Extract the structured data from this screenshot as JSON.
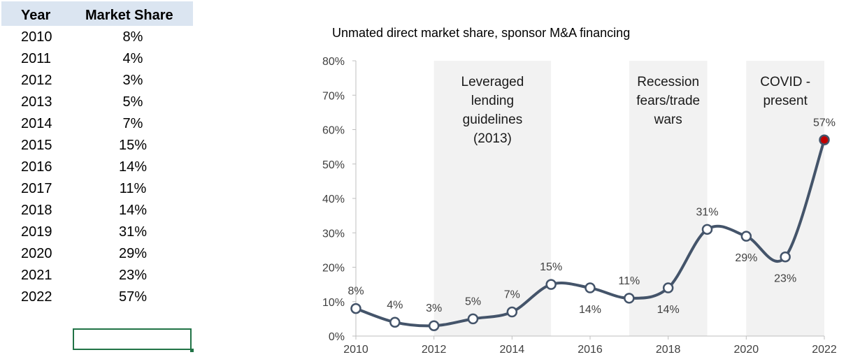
{
  "table": {
    "header_year": "Year",
    "header_share": "Market Share",
    "rows": [
      {
        "year": "2010",
        "share": "8%"
      },
      {
        "year": "2011",
        "share": "4%"
      },
      {
        "year": "2012",
        "share": "3%"
      },
      {
        "year": "2013",
        "share": "5%"
      },
      {
        "year": "2014",
        "share": "7%"
      },
      {
        "year": "2015",
        "share": "15%"
      },
      {
        "year": "2016",
        "share": "14%"
      },
      {
        "year": "2017",
        "share": "11%"
      },
      {
        "year": "2018",
        "share": "14%"
      },
      {
        "year": "2019",
        "share": "31%"
      },
      {
        "year": "2020",
        "share": "29%"
      },
      {
        "year": "2021",
        "share": "23%"
      },
      {
        "year": "2022",
        "share": "57%"
      }
    ]
  },
  "chart_data": {
    "type": "line",
    "title": "Unmated direct market share, sponsor M&A financing",
    "xlabel": "",
    "ylabel": "",
    "x": [
      2010,
      2011,
      2012,
      2013,
      2014,
      2015,
      2016,
      2017,
      2018,
      2019,
      2020,
      2021,
      2022
    ],
    "series": [
      {
        "values": [
          8,
          4,
          3,
          5,
          7,
          15,
          14,
          11,
          14,
          31,
          29,
          23,
          57
        ]
      }
    ],
    "data_labels": [
      "8%",
      "4%",
      "3%",
      "5%",
      "7%",
      "15%",
      "14%",
      "11%",
      "14%",
      "31%",
      "29%",
      "23%",
      "57%"
    ],
    "label_position": [
      "above",
      "above",
      "above",
      "above",
      "above",
      "above",
      "below",
      "above",
      "below",
      "above",
      "below",
      "below",
      "above"
    ],
    "xlim": [
      2010,
      2022
    ],
    "ylim": [
      0,
      80
    ],
    "x_ticks": [
      2010,
      2012,
      2014,
      2016,
      2018,
      2020,
      2022
    ],
    "x_tick_labels": [
      "2010",
      "2012",
      "2014",
      "2016",
      "2018",
      "2020",
      "2022"
    ],
    "y_ticks": [
      0,
      10,
      20,
      30,
      40,
      50,
      60,
      70,
      80
    ],
    "y_tick_labels": [
      "0%",
      "10%",
      "20%",
      "30%",
      "40%",
      "50%",
      "60%",
      "70%",
      "80%"
    ],
    "shaded_periods": [
      {
        "from": 2012,
        "to": 2015,
        "label_lines": [
          "Leveraged",
          "lending",
          "guidelines",
          "(2013)"
        ]
      },
      {
        "from": 2017,
        "to": 2019,
        "label_lines": [
          "Recession",
          "fears/trade",
          "wars"
        ]
      },
      {
        "from": 2020,
        "to": 2022,
        "label_lines": [
          "COVID -",
          "present"
        ]
      }
    ],
    "grid": false,
    "line_color": "#44546a",
    "shade_color": "#f2f2f2",
    "highlight_color": "#c00000"
  }
}
